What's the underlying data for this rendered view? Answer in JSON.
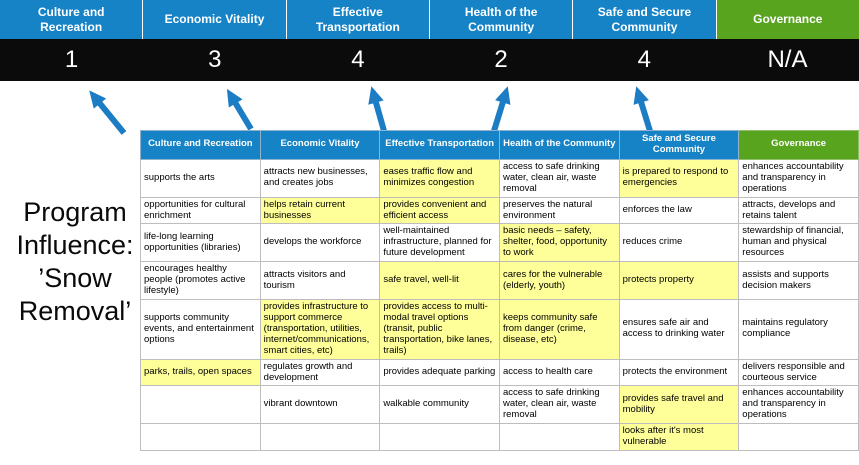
{
  "slide": {
    "title_lines": [
      "Program",
      "Influence:",
      "’Snow",
      "Removal’"
    ]
  },
  "colors": {
    "category_blue": "#1583c6",
    "governance_green": "#58a41f",
    "score_band_background": "#0b0b0b",
    "highlight_yellow": "#ffff99",
    "arrow_blue": "#1c7cc4"
  },
  "categories": [
    {
      "label": "Culture and Recreation",
      "score": "1",
      "theme": "blue"
    },
    {
      "label": "Economic Vitality",
      "score": "3",
      "theme": "blue"
    },
    {
      "label": "Effective Transportation",
      "score": "4",
      "theme": "blue"
    },
    {
      "label": "Health of the Community",
      "score": "2",
      "theme": "blue"
    },
    {
      "label": "Safe and Secure Community",
      "score": "4",
      "theme": "blue"
    },
    {
      "label": "Governance",
      "score": "N/A",
      "theme": "green"
    }
  ],
  "matrix": {
    "headers": [
      {
        "label": "Culture and Recreation",
        "theme": "blue"
      },
      {
        "label": "Economic Vitality",
        "theme": "blue"
      },
      {
        "label": "Effective Transportation",
        "theme": "blue"
      },
      {
        "label": "Health of the Community",
        "theme": "blue"
      },
      {
        "label": "Safe and Secure Community",
        "theme": "blue"
      },
      {
        "label": "Governance",
        "theme": "green"
      }
    ],
    "rows": [
      [
        {
          "t": "supports the arts",
          "h": false
        },
        {
          "t": "attracts new businesses, and creates jobs",
          "h": false
        },
        {
          "t": "eases traffic flow and minimizes congestion",
          "h": true
        },
        {
          "t": "access to safe drinking water, clean air, waste removal",
          "h": false
        },
        {
          "t": "is prepared to respond to emergencies",
          "h": true
        },
        {
          "t": "enhances accountability and transparency in operations",
          "h": false
        }
      ],
      [
        {
          "t": "opportunities for cultural enrichment",
          "h": false
        },
        {
          "t": "helps retain current businesses",
          "h": true
        },
        {
          "t": "provides convenient and efficient access",
          "h": true
        },
        {
          "t": "preserves the natural environment",
          "h": false
        },
        {
          "t": "enforces the law",
          "h": false
        },
        {
          "t": "attracts, develops and retains talent",
          "h": false
        }
      ],
      [
        {
          "t": "life-long learning opportunities (libraries)",
          "h": false
        },
        {
          "t": "develops the workforce",
          "h": false
        },
        {
          "t": "well-maintained infrastructure, planned for future development",
          "h": false
        },
        {
          "t": "basic needs – safety, shelter, food, opportunity to work",
          "h": true
        },
        {
          "t": "reduces crime",
          "h": false
        },
        {
          "t": "stewardship of financial, human and physical resources",
          "h": false
        }
      ],
      [
        {
          "t": "encourages healthy people (promotes active lifestyle)",
          "h": false
        },
        {
          "t": "attracts visitors and tourism",
          "h": false
        },
        {
          "t": "safe travel, well-lit",
          "h": true
        },
        {
          "t": "cares for the vulnerable (elderly, youth)",
          "h": true
        },
        {
          "t": "protects property",
          "h": true
        },
        {
          "t": "assists and supports decision makers",
          "h": false
        }
      ],
      [
        {
          "t": "supports community events, and entertainment options",
          "h": false
        },
        {
          "t": "provides infrastructure to support commerce (transportation, utilities, internet/communications, smart cities, etc)",
          "h": true
        },
        {
          "t": "provides access to multi-modal travel options (transit, public transportation, bike lanes, trails)",
          "h": true
        },
        {
          "t": "keeps community safe from danger (crime, disease, etc)",
          "h": true
        },
        {
          "t": "ensures safe air and access to drinking water",
          "h": false
        },
        {
          "t": "maintains regulatory compliance",
          "h": false
        }
      ],
      [
        {
          "t": "parks, trails, open spaces",
          "h": true
        },
        {
          "t": "regulates growth and development",
          "h": false
        },
        {
          "t": "provides adequate parking",
          "h": false
        },
        {
          "t": "access to health care",
          "h": false
        },
        {
          "t": "protects the environment",
          "h": false
        },
        {
          "t": "delivers responsible and courteous service",
          "h": false
        }
      ],
      [
        {
          "t": "",
          "h": false
        },
        {
          "t": "vibrant downtown",
          "h": false
        },
        {
          "t": "walkable community",
          "h": false
        },
        {
          "t": "access to safe drinking water, clean air, waste removal",
          "h": false
        },
        {
          "t": "provides safe travel and mobility",
          "h": true
        },
        {
          "t": "enhances accountability and transparency in operations",
          "h": false
        }
      ],
      [
        {
          "t": "",
          "h": false
        },
        {
          "t": "",
          "h": false
        },
        {
          "t": "",
          "h": false
        },
        {
          "t": "",
          "h": false
        },
        {
          "t": "looks after it's most vulnerable",
          "h": true
        },
        {
          "t": "",
          "h": false
        }
      ]
    ]
  }
}
